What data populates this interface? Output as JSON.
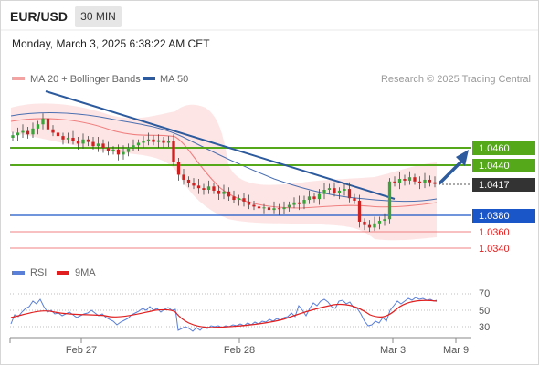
{
  "header": {
    "symbol": "EUR/USD",
    "timeframe": "30 MIN",
    "datetime": "Monday, March 3, 2025 6:38:22 AM CET"
  },
  "legend": {
    "items": [
      {
        "label": "MA 20 + Bollinger Bands",
        "color": "#f08080"
      },
      {
        "label": "MA 50",
        "color": "#2c5a9c"
      }
    ],
    "credit": "Research © 2025 Trading Central"
  },
  "rsi_legend": {
    "items": [
      {
        "label": "RSI",
        "color": "#5a7fd6"
      },
      {
        "label": "9MA",
        "color": "#e02020"
      }
    ]
  },
  "colors": {
    "resistance": "#55a81a",
    "support": "#1a56c8",
    "pivot_red": "#f08080",
    "price_tag": "#333333"
  },
  "chart_data": [
    {
      "type": "line",
      "series_type": "candlestick",
      "y_ticks_levels": [
        1.046,
        1.044,
        1.0417,
        1.038,
        1.036,
        1.034
      ],
      "levels": [
        {
          "value": 1.046,
          "label": "1.0460",
          "kind": "resistance"
        },
        {
          "value": 1.044,
          "label": "1.0440",
          "kind": "resistance"
        },
        {
          "value": 1.0417,
          "label": "1.0417",
          "kind": "last-price"
        },
        {
          "value": 1.038,
          "label": "1.0380",
          "kind": "support"
        },
        {
          "value": 1.036,
          "label": "1.0360",
          "kind": "target"
        },
        {
          "value": 1.034,
          "label": "1.0340",
          "kind": "target"
        }
      ],
      "ylim": [
        1.0325,
        1.051
      ],
      "x_ticks": [
        "Feb 27",
        "Feb 28",
        "Mar 3",
        "Mar 9"
      ],
      "close_path": [
        1.0475,
        1.0478,
        1.048,
        1.0476,
        1.0483,
        1.0488,
        1.0495,
        1.0482,
        1.0478,
        1.0474,
        1.047,
        1.0472,
        1.0468,
        1.0465,
        1.047,
        1.0467,
        1.0462,
        1.0465,
        1.046,
        1.0456,
        1.0458,
        1.0452,
        1.0455,
        1.046,
        1.0463,
        1.0466,
        1.0468,
        1.047,
        1.0467,
        1.0469,
        1.0466,
        1.0468,
        1.0443,
        1.0428,
        1.0422,
        1.0418,
        1.0415,
        1.0412,
        1.041,
        1.0414,
        1.0409,
        1.0405,
        1.0408,
        1.0402,
        1.0398,
        1.04,
        1.0396,
        1.0392,
        1.039,
        1.0388,
        1.0389,
        1.0386,
        1.0388,
        1.0387,
        1.0389,
        1.0392,
        1.0395,
        1.0393,
        1.0398,
        1.0402,
        1.0399,
        1.0405,
        1.041,
        1.0412,
        1.0406,
        1.0409,
        1.0411,
        1.04,
        1.0397,
        1.0372,
        1.0368,
        1.0365,
        1.037,
        1.0373,
        1.0375,
        1.042,
        1.0418,
        1.0423,
        1.0421,
        1.0425,
        1.042,
        1.0418,
        1.0422,
        1.0419,
        1.0417
      ]
    },
    {
      "type": "line",
      "title": "",
      "series": [
        {
          "name": "RSI"
        },
        {
          "name": "9MA"
        }
      ],
      "y_ticks": [
        70,
        50,
        30
      ],
      "ylim": [
        20,
        80
      ]
    }
  ]
}
